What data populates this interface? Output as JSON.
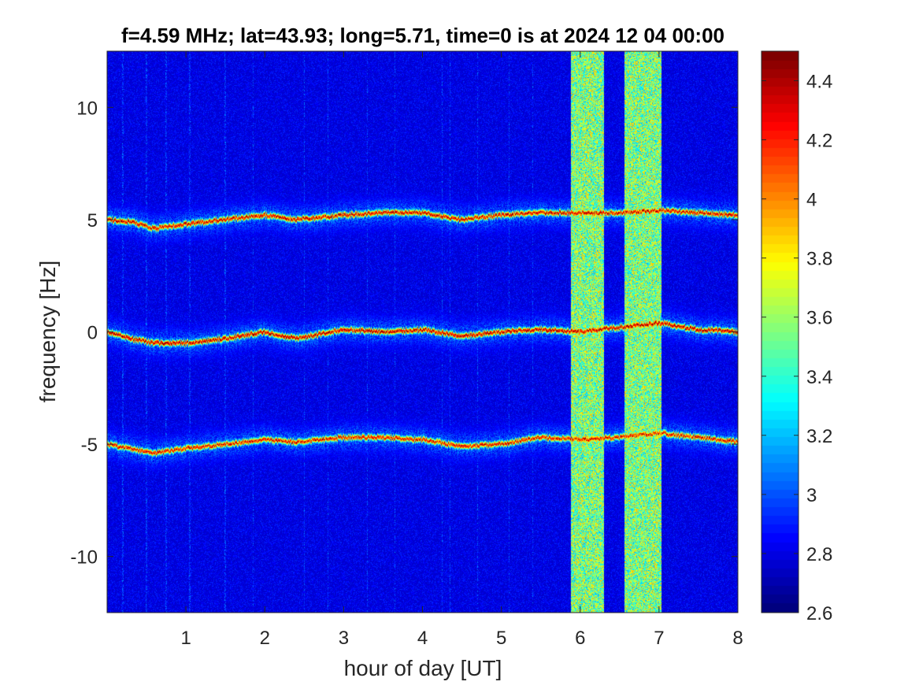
{
  "chart_data": {
    "type": "heatmap",
    "title": "f=4.59 MHz;  lat=43.93; long=5.71, time=0 is at 2024 12 04 00:00",
    "xlabel": "hour of day [UT]",
    "ylabel": "frequency [Hz]",
    "xlim": [
      0,
      8
    ],
    "ylim": [
      -12.5,
      12.5
    ],
    "x_ticks": [
      1,
      2,
      3,
      4,
      5,
      6,
      7,
      8
    ],
    "y_ticks": [
      -10,
      -5,
      0,
      5,
      10
    ],
    "x_tick_labels": [
      "1",
      "2",
      "3",
      "4",
      "5",
      "6",
      "7",
      "8"
    ],
    "y_tick_labels": [
      "-10",
      "-5",
      "0",
      "5",
      "10"
    ],
    "colorbar": {
      "colormap": "jet",
      "range": [
        2.6,
        4.5
      ],
      "ticks": [
        2.6,
        2.8,
        3.0,
        3.2,
        3.4,
        3.6,
        3.8,
        4.0,
        4.2,
        4.4
      ],
      "tick_labels": [
        "2.6",
        "2.8",
        "3",
        "3.2",
        "3.4",
        "3.6",
        "3.8",
        "4",
        "4.2",
        "4.4"
      ]
    },
    "background_level": 2.75,
    "ridges": [
      {
        "hours": [
          0,
          0.3,
          0.6,
          1.0,
          1.5,
          2.0,
          2.4,
          3.0,
          3.5,
          4.0,
          4.5,
          5.0,
          5.5,
          6.0,
          6.5,
          7.0,
          7.5,
          8.0
        ],
        "freq_hz": [
          5.0,
          4.9,
          4.6,
          4.8,
          5.0,
          5.2,
          5.0,
          5.2,
          5.3,
          5.3,
          5.0,
          5.2,
          5.3,
          5.3,
          5.3,
          5.4,
          5.3,
          5.2
        ],
        "peak_level": 4.45
      },
      {
        "hours": [
          0,
          0.3,
          0.6,
          1.0,
          1.5,
          2.0,
          2.4,
          3.0,
          3.5,
          4.0,
          4.5,
          5.0,
          5.5,
          6.0,
          6.5,
          7.0,
          7.5,
          8.0
        ],
        "freq_hz": [
          0.0,
          -0.3,
          -0.5,
          -0.5,
          -0.3,
          0.0,
          -0.3,
          0.1,
          0.0,
          0.1,
          -0.2,
          0.0,
          0.1,
          0.0,
          0.2,
          0.4,
          0.1,
          0.0
        ],
        "peak_level": 4.5
      },
      {
        "hours": [
          0,
          0.3,
          0.6,
          1.0,
          1.5,
          2.0,
          2.4,
          3.0,
          3.5,
          4.0,
          4.5,
          5.0,
          5.5,
          6.0,
          6.5,
          7.0,
          7.5,
          8.0
        ],
        "freq_hz": [
          -5.0,
          -5.2,
          -5.4,
          -5.2,
          -5.0,
          -4.8,
          -4.9,
          -4.7,
          -4.7,
          -4.8,
          -5.1,
          -5.0,
          -4.7,
          -4.8,
          -4.7,
          -4.5,
          -4.7,
          -4.9
        ],
        "peak_level": 4.4
      }
    ],
    "broadband_bands": [
      {
        "hour_start": 5.88,
        "hour_end": 6.3,
        "level": 3.55
      },
      {
        "hour_start": 6.56,
        "hour_end": 7.03,
        "level": 3.55
      }
    ],
    "vertical_streaks_hours": [
      0.2,
      0.5,
      0.75,
      1.05,
      1.5,
      1.85,
      2.5,
      2.8,
      3.3,
      3.65,
      4.25,
      4.35,
      4.7,
      5.1,
      5.4
    ]
  }
}
